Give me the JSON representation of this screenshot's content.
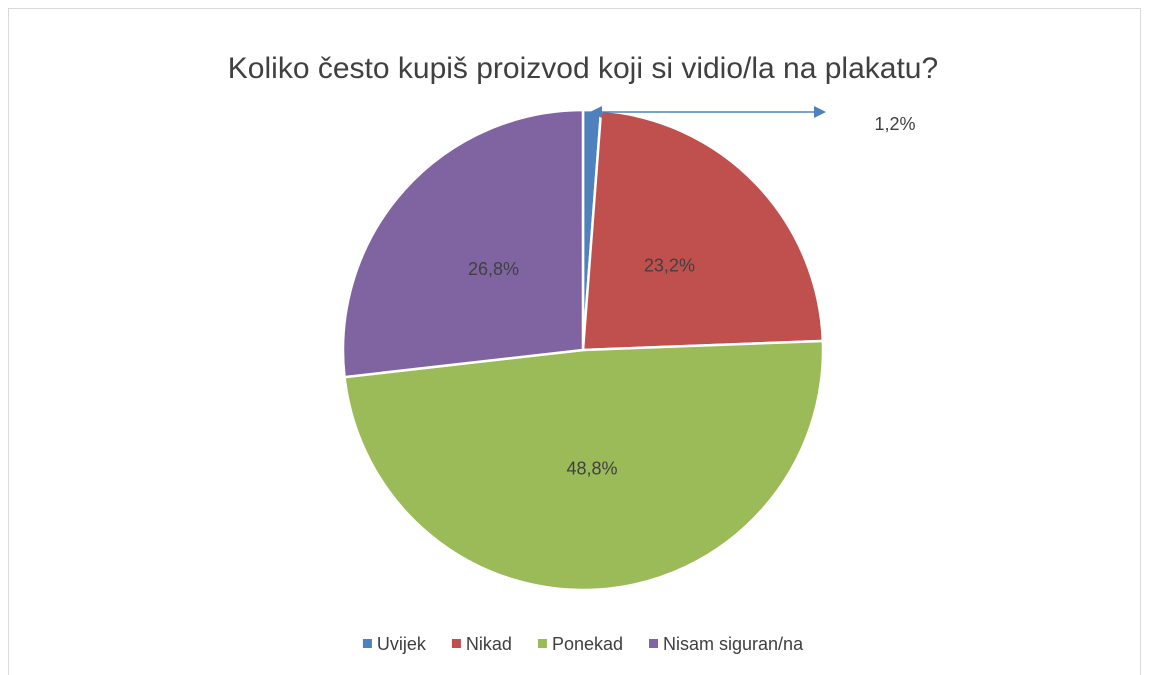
{
  "chart_data": {
    "type": "pie",
    "title": "Koliko često kupiš proizvod koji si vidio/la na plakatu?",
    "categories": [
      "Uvijek",
      "Nikad",
      "Ponekad",
      "Nisam siguran/na"
    ],
    "values": [
      1.2,
      23.2,
      48.8,
      26.8
    ],
    "value_labels": [
      "1,2%",
      "23,2%",
      "48,8%",
      "26,8%"
    ],
    "colors": [
      "#4f81bd",
      "#c0504d",
      "#9bbb59",
      "#8064a2"
    ],
    "legend": "bottom"
  }
}
